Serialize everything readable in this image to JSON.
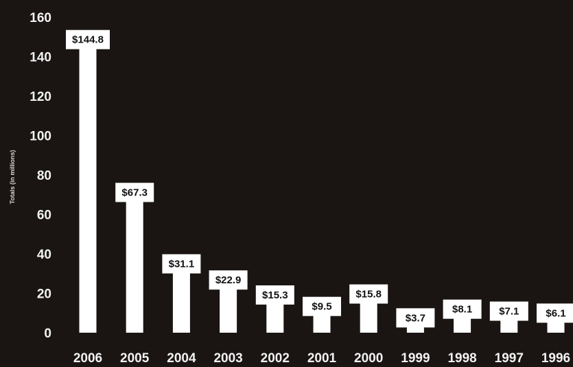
{
  "colors": {
    "background": "#1a1513",
    "bar": "#ffffff",
    "label_box": "#ffffff",
    "text": "#f2f2f2"
  },
  "chart_data": {
    "type": "bar",
    "title": "",
    "xlabel": "",
    "ylabel": "Totals (in millions)",
    "ylim": [
      0,
      160
    ],
    "yticks": [
      0,
      20,
      40,
      60,
      80,
      100,
      120,
      140,
      160
    ],
    "grid": false,
    "categories": [
      "2006",
      "2005",
      "2004",
      "2003",
      "2002",
      "2001",
      "2000",
      "1999",
      "1998",
      "1997",
      "1996"
    ],
    "values": [
      144.8,
      67.3,
      31.1,
      22.9,
      15.3,
      9.5,
      15.8,
      3.7,
      8.1,
      7.1,
      6.1
    ],
    "data_labels": [
      "$144.8",
      "$67.3",
      "$31.1",
      "$22.9",
      "$15.3",
      "$9.5",
      "$15.8",
      "$3.7",
      "$8.1",
      "$7.1",
      "$6.1"
    ]
  }
}
